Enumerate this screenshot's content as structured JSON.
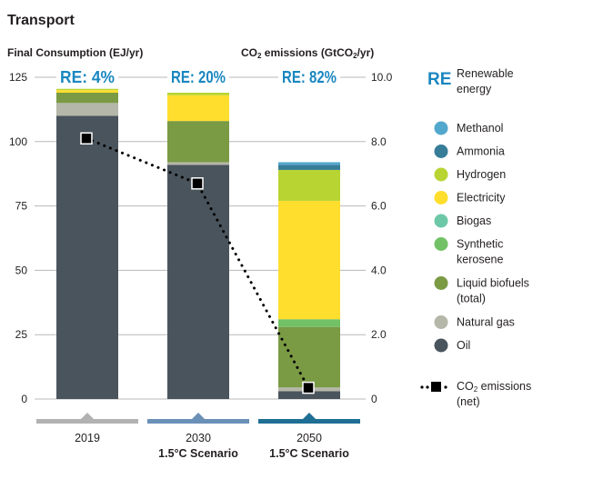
{
  "chart_data": {
    "type": "bar",
    "stacked": true,
    "title": "Transport",
    "ylabel_left": "Final Consumption (EJ/yr)",
    "ylabel_right_prefix": "CO",
    "ylabel_right_sub": "2",
    "ylabel_right_mid": " emissions (GtCO",
    "ylabel_right_sub2": "2",
    "ylabel_right_suffix": "/yr)",
    "ylim_left": [
      0,
      125
    ],
    "yticks_left": [
      "0",
      "25",
      "50",
      "75",
      "100",
      "125"
    ],
    "ylim_right": [
      0,
      10
    ],
    "yticks_right": [
      "0",
      "2.0",
      "4.0",
      "6.0",
      "8.0",
      "10.0"
    ],
    "categories": [
      "2019",
      "2030",
      "2050"
    ],
    "category_sublabels": [
      "",
      "1.5°C Scenario",
      "1.5°C Scenario"
    ],
    "re_labels": [
      "RE: 4%",
      "RE: 20%",
      "RE: 82%"
    ],
    "re_key_symbol": "RE",
    "re_key_text": "Renewable energy",
    "series": [
      {
        "name": "Oil",
        "color": "#4a545c",
        "values": [
          110,
          91,
          3
        ]
      },
      {
        "name": "Natural gas",
        "color": "#b5b7a8",
        "values": [
          5,
          1,
          1.5
        ]
      },
      {
        "name": "Liquid biofuels (total)",
        "color": "#7a9a44",
        "values": [
          4,
          16,
          23.5
        ]
      },
      {
        "name": "Synthetic kerosene",
        "color": "#72c166",
        "values": [
          0,
          0,
          3
        ]
      },
      {
        "name": "Biogas",
        "color": "#6dc8a8",
        "values": [
          0,
          0,
          0
        ]
      },
      {
        "name": "Electricity",
        "color": "#ffde2d",
        "values": [
          1,
          10,
          46
        ]
      },
      {
        "name": "Hydrogen",
        "color": "#b8d433",
        "values": [
          0.5,
          1,
          12
        ]
      },
      {
        "name": "Ammonia",
        "color": "#387d98",
        "values": [
          0,
          0,
          2
        ]
      },
      {
        "name": "Methanol",
        "color": "#52a7cd",
        "values": [
          0,
          0,
          1
        ]
      }
    ],
    "co2_series": {
      "name_prefix": "CO",
      "name_sub": "2",
      "name_suffix": " emissions (net)",
      "values": [
        8.1,
        6.7,
        0.35
      ]
    },
    "legend_order": [
      "Methanol",
      "Ammonia",
      "Hydrogen",
      "Electricity",
      "Biogas",
      "Synthetic kerosene",
      "Liquid biofuels (total)",
      "Natural gas",
      "Oil"
    ],
    "category_band_colors": [
      "#b2b2b2",
      "#6b90b8",
      "#1f6e94"
    ],
    "accent": "#1a87c0"
  }
}
